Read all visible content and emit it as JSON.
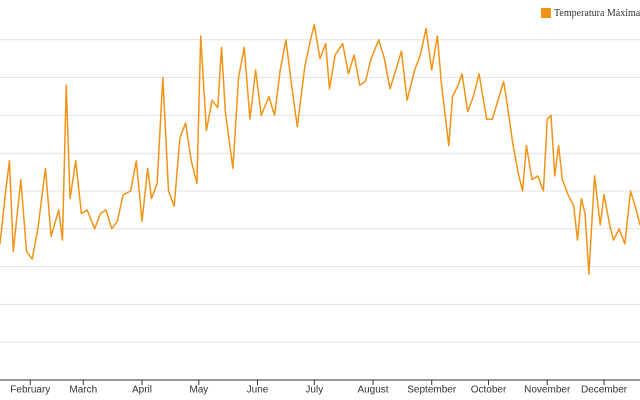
{
  "chart_data": {
    "type": "line",
    "series": [
      {
        "name": "Temperatura Máxima",
        "color": "#f39316",
        "values": [
          8,
          15,
          19,
          7,
          16.5,
          7,
          6,
          10,
          18,
          9,
          12.5,
          8.5,
          29,
          14,
          19,
          12,
          12.5,
          10,
          12,
          12.5,
          10,
          11,
          14.5,
          15,
          19,
          11,
          18,
          14,
          16,
          30,
          15,
          13,
          22,
          24,
          19,
          16,
          35.5,
          23,
          27,
          26,
          34,
          25.5,
          18,
          30,
          34,
          24.5,
          31,
          25,
          27.5,
          25,
          31,
          35,
          29,
          23.5,
          31.5,
          35,
          37,
          32.5,
          34.5,
          28.5,
          33,
          34.5,
          30.5,
          33,
          29,
          29.5,
          32.5,
          35,
          32.5,
          28.5,
          31,
          33.5,
          27,
          31,
          33,
          36.5,
          31,
          35.5,
          29.5,
          21,
          27.5,
          29,
          30.5,
          25.5,
          27.5,
          30.5,
          24.5,
          24.5,
          27,
          29.5,
          24.5,
          21,
          17,
          15,
          21,
          16.5,
          17,
          15,
          24.5,
          25,
          17,
          21,
          16.5,
          14.5,
          13,
          8.5,
          14,
          12,
          4,
          17,
          10.5,
          14.5,
          10.5,
          8.5,
          10,
          8,
          15,
          12.5,
          10.5
        ]
      }
    ],
    "x": [
      16,
      19,
      21,
      23,
      27,
      30,
      33,
      36,
      40,
      43,
      47,
      49,
      51,
      53,
      56,
      59,
      62,
      66,
      69,
      72,
      75,
      78,
      81,
      85,
      88,
      91,
      94,
      96,
      99,
      102,
      105,
      108,
      111,
      114,
      117,
      120,
      122,
      125,
      128,
      131,
      133,
      135,
      139,
      142,
      145,
      148,
      151,
      154,
      158,
      161,
      164,
      167,
      170,
      173,
      177,
      180,
      182,
      185,
      188,
      190,
      193,
      197,
      200,
      203,
      206,
      209,
      212,
      216,
      219,
      222,
      225,
      228,
      231,
      235,
      238,
      241,
      244,
      247,
      249,
      253,
      255,
      258,
      260,
      263,
      266,
      269,
      273,
      276,
      279,
      282,
      285,
      287,
      290,
      292,
      294,
      297,
      300,
      303,
      305,
      307,
      309,
      311,
      313,
      316,
      319,
      321,
      323,
      325,
      327,
      330,
      333,
      335,
      338,
      340,
      343,
      346,
      349,
      352,
      354
    ],
    "xlim": [
      16,
      354
    ],
    "xticks": [
      {
        "value": 32,
        "label": "February"
      },
      {
        "value": 60,
        "label": "March"
      },
      {
        "value": 91,
        "label": "April"
      },
      {
        "value": 121,
        "label": "May"
      },
      {
        "value": 152,
        "label": "June"
      },
      {
        "value": 182,
        "label": "July"
      },
      {
        "value": 213,
        "label": "August"
      },
      {
        "value": 244,
        "label": "September"
      },
      {
        "value": 274,
        "label": "October"
      },
      {
        "value": 305,
        "label": "November"
      },
      {
        "value": 335,
        "label": "December"
      }
    ],
    "ylim": [
      -10,
      40
    ],
    "yticks": [
      -5,
      0,
      5,
      10,
      15,
      20,
      25,
      30,
      35
    ],
    "ytick_labels": false,
    "grid": true,
    "legend": "top-right"
  }
}
